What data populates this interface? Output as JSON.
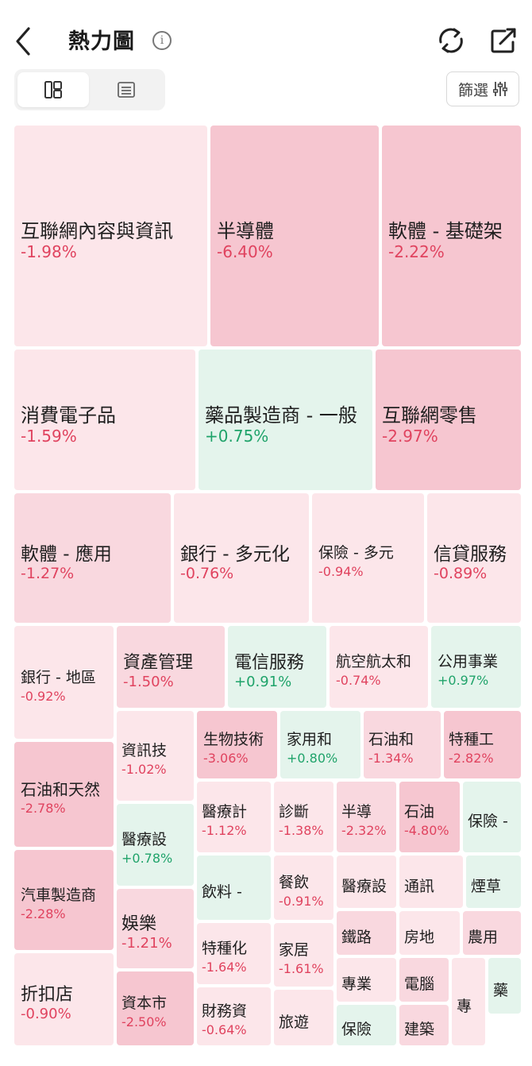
{
  "header": {
    "title": "熱力圖",
    "info_icon": "info-icon",
    "back_icon": "back-chevron-icon",
    "refresh_icon": "refresh-icon",
    "share_icon": "share-icon"
  },
  "view_toggle": {
    "selected": "tile-view",
    "options": [
      "tile-view-icon",
      "list-view-icon"
    ]
  },
  "filter": {
    "label": "篩選",
    "icon": "sliders-icon"
  },
  "colors": {
    "down": "#e0435f",
    "up": "#1fa36a",
    "down_strong_bg": "#f6c6d0",
    "down_mid_bg": "#f9d8df",
    "down_light_bg": "#fce6ea",
    "up_bg": "#e4f4ec"
  },
  "tiles": [
    {
      "name": "互聯網內容與資訊",
      "change": "-1.98%"
    },
    {
      "name": "半導體",
      "change": "-6.40%"
    },
    {
      "name": "軟體 - 基礎架",
      "change": "-2.22%"
    },
    {
      "name": "消費電子品",
      "change": "-1.59%"
    },
    {
      "name": "藥品製造商 - 一般",
      "change": "+0.75%"
    },
    {
      "name": "互聯網零售",
      "change": "-2.97%"
    },
    {
      "name": "軟體 - 應用",
      "change": "-1.27%"
    },
    {
      "name": "銀行 - 多元化",
      "change": "-0.76%"
    },
    {
      "name": "保險 - 多元",
      "change": "-0.94%"
    },
    {
      "name": "信貸服務",
      "change": "-0.89%"
    },
    {
      "name": "銀行 - 地區",
      "change": "-0.92%"
    },
    {
      "name": "資產管理",
      "change": "-1.50%"
    },
    {
      "name": "電信服務",
      "change": "+0.91%"
    },
    {
      "name": "航空航太和",
      "change": "-0.74%"
    },
    {
      "name": "公用事業",
      "change": "+0.97%"
    },
    {
      "name": "石油和天然",
      "change": "-2.78%"
    },
    {
      "name": "資訊技",
      "change": "-1.02%"
    },
    {
      "name": "生物技術",
      "change": "-3.06%"
    },
    {
      "name": "家用和",
      "change": "+0.80%"
    },
    {
      "name": "石油和",
      "change": "-1.34%"
    },
    {
      "name": "特種工",
      "change": "-2.82%"
    },
    {
      "name": "醫療計",
      "change": "-1.12%"
    },
    {
      "name": "診斷",
      "change": "-1.38%"
    },
    {
      "name": "半導",
      "change": "-2.32%"
    },
    {
      "name": "石油",
      "change": "-4.80%"
    },
    {
      "name": "保險 -",
      "change": ""
    },
    {
      "name": "醫療設",
      "change": "+0.78%"
    },
    {
      "name": "汽車製造商",
      "change": "-2.28%"
    },
    {
      "name": "飲料 -",
      "change": ""
    },
    {
      "name": "餐飲",
      "change": "-0.91%"
    },
    {
      "name": "醫療設",
      "change": ""
    },
    {
      "name": "通訊",
      "change": ""
    },
    {
      "name": "煙草",
      "change": ""
    },
    {
      "name": "娛樂",
      "change": "-1.21%"
    },
    {
      "name": "特種化",
      "change": "-1.64%"
    },
    {
      "name": "家居",
      "change": "-1.61%"
    },
    {
      "name": "鐵路",
      "change": ""
    },
    {
      "name": "房地",
      "change": ""
    },
    {
      "name": "農用",
      "change": ""
    },
    {
      "name": "折扣店",
      "change": "-0.90%"
    },
    {
      "name": "資本市",
      "change": "-2.50%"
    },
    {
      "name": "財務資",
      "change": "-0.64%"
    },
    {
      "name": "旅遊",
      "change": ""
    },
    {
      "name": "專業",
      "change": ""
    },
    {
      "name": "保險",
      "change": ""
    },
    {
      "name": "電腦",
      "change": ""
    },
    {
      "name": "建築",
      "change": ""
    },
    {
      "name": "專",
      "change": ""
    },
    {
      "name": "藥",
      "change": ""
    }
  ]
}
